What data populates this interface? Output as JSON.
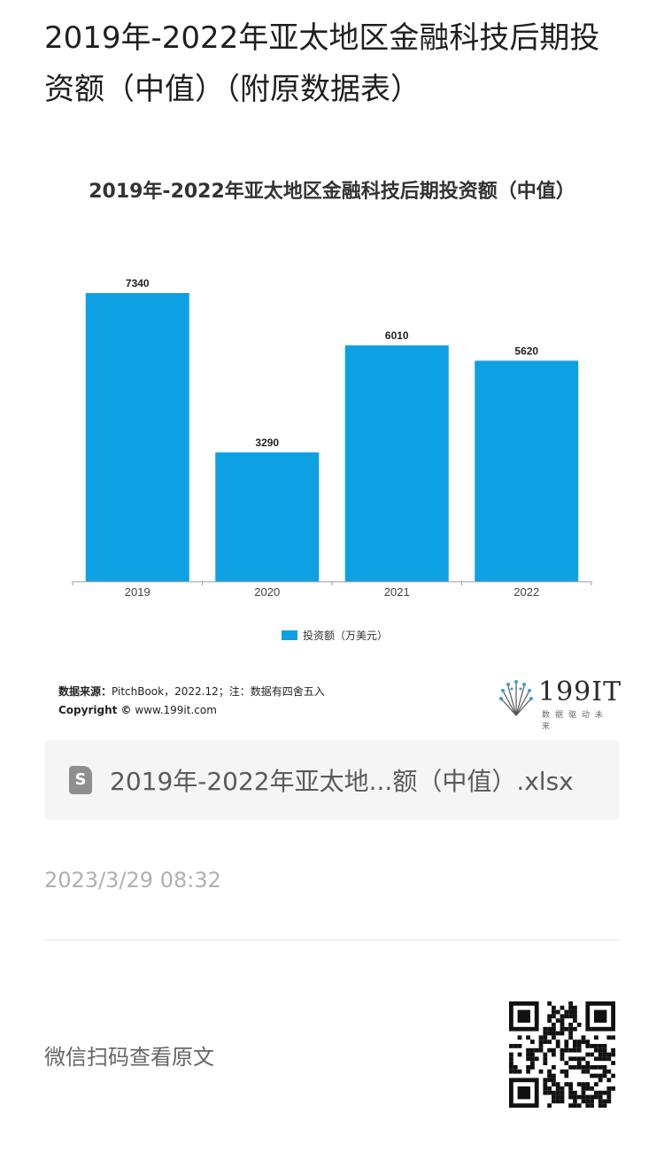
{
  "page": {
    "title": "2019年-2022年亚太地区金融科技后期投资额（中值）（附原数据表）"
  },
  "chart_data": {
    "type": "bar",
    "title": "2019年-2022年亚太地区金融科技后期投资额（中值）",
    "categories": [
      "2019",
      "2020",
      "2021",
      "2022"
    ],
    "series": [
      {
        "name": "投资额（万美元）",
        "values": [
          7340,
          3290,
          6010,
          5620
        ]
      }
    ],
    "ylim": [
      0,
      7340
    ],
    "bar_color": "#0da1e4",
    "grid": false,
    "legend_position": "bottom"
  },
  "source": {
    "label": "数据来源：",
    "text": "PitchBook，2022.12；注：数据有四舍五入",
    "copyright_label": "Copyright ©",
    "copyright_url": "www.199it.com"
  },
  "logo": {
    "brand": "199IT",
    "tagline": "数据驱动未来"
  },
  "file": {
    "name": "2019年-2022年亚太地...额（中值）.xlsx",
    "icon": "spreadsheet-file-icon"
  },
  "meta": {
    "timestamp": "2023/3/29 08:32"
  },
  "footer": {
    "scan_text": "微信扫码查看原文"
  }
}
